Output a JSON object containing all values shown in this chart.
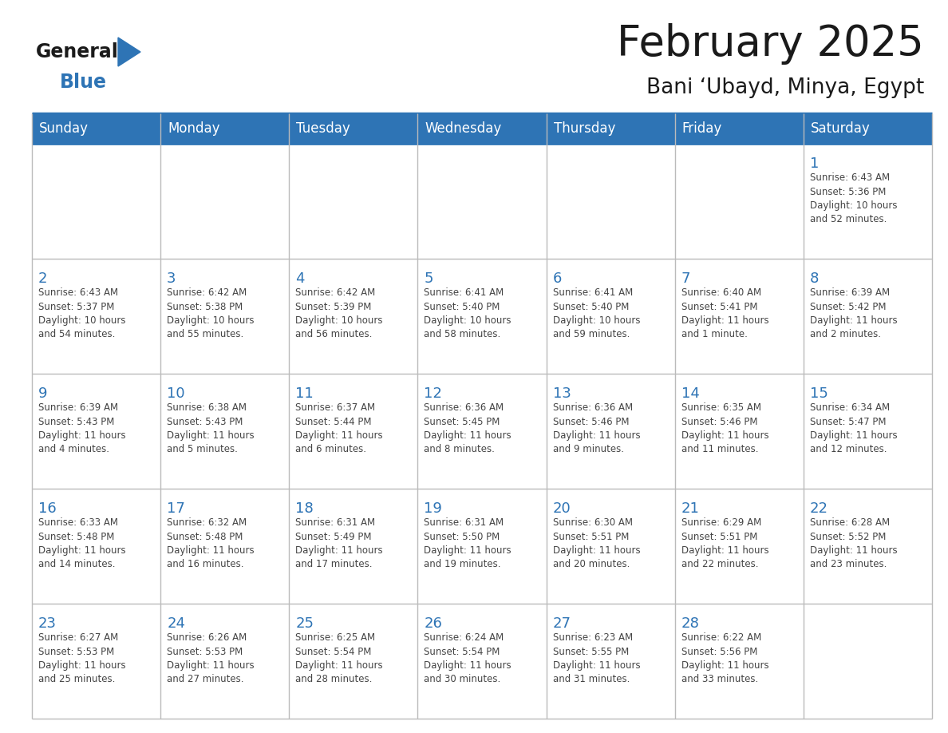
{
  "title": "February 2025",
  "subtitle": "Bani ‘Ubayd, Minya, Egypt",
  "days_of_week": [
    "Sunday",
    "Monday",
    "Tuesday",
    "Wednesday",
    "Thursday",
    "Friday",
    "Saturday"
  ],
  "header_bg": "#2E74B5",
  "header_text_color": "#FFFFFF",
  "cell_bg": "#FFFFFF",
  "border_color": "#2E74B5",
  "grid_color": "#BBBBBB",
  "day_number_color": "#2E74B5",
  "info_text_color": "#444444",
  "title_color": "#1A1A1A",
  "subtitle_color": "#1A1A1A",
  "logo_general_color": "#1A1A1A",
  "logo_blue_color": "#2E74B5",
  "calendar_data": [
    [
      null,
      null,
      null,
      null,
      null,
      null,
      1
    ],
    [
      2,
      3,
      4,
      5,
      6,
      7,
      8
    ],
    [
      9,
      10,
      11,
      12,
      13,
      14,
      15
    ],
    [
      16,
      17,
      18,
      19,
      20,
      21,
      22
    ],
    [
      23,
      24,
      25,
      26,
      27,
      28,
      null
    ]
  ],
  "sunrise_data": {
    "1": "Sunrise: 6:43 AM\nSunset: 5:36 PM\nDaylight: 10 hours\nand 52 minutes.",
    "2": "Sunrise: 6:43 AM\nSunset: 5:37 PM\nDaylight: 10 hours\nand 54 minutes.",
    "3": "Sunrise: 6:42 AM\nSunset: 5:38 PM\nDaylight: 10 hours\nand 55 minutes.",
    "4": "Sunrise: 6:42 AM\nSunset: 5:39 PM\nDaylight: 10 hours\nand 56 minutes.",
    "5": "Sunrise: 6:41 AM\nSunset: 5:40 PM\nDaylight: 10 hours\nand 58 minutes.",
    "6": "Sunrise: 6:41 AM\nSunset: 5:40 PM\nDaylight: 10 hours\nand 59 minutes.",
    "7": "Sunrise: 6:40 AM\nSunset: 5:41 PM\nDaylight: 11 hours\nand 1 minute.",
    "8": "Sunrise: 6:39 AM\nSunset: 5:42 PM\nDaylight: 11 hours\nand 2 minutes.",
    "9": "Sunrise: 6:39 AM\nSunset: 5:43 PM\nDaylight: 11 hours\nand 4 minutes.",
    "10": "Sunrise: 6:38 AM\nSunset: 5:43 PM\nDaylight: 11 hours\nand 5 minutes.",
    "11": "Sunrise: 6:37 AM\nSunset: 5:44 PM\nDaylight: 11 hours\nand 6 minutes.",
    "12": "Sunrise: 6:36 AM\nSunset: 5:45 PM\nDaylight: 11 hours\nand 8 minutes.",
    "13": "Sunrise: 6:36 AM\nSunset: 5:46 PM\nDaylight: 11 hours\nand 9 minutes.",
    "14": "Sunrise: 6:35 AM\nSunset: 5:46 PM\nDaylight: 11 hours\nand 11 minutes.",
    "15": "Sunrise: 6:34 AM\nSunset: 5:47 PM\nDaylight: 11 hours\nand 12 minutes.",
    "16": "Sunrise: 6:33 AM\nSunset: 5:48 PM\nDaylight: 11 hours\nand 14 minutes.",
    "17": "Sunrise: 6:32 AM\nSunset: 5:48 PM\nDaylight: 11 hours\nand 16 minutes.",
    "18": "Sunrise: 6:31 AM\nSunset: 5:49 PM\nDaylight: 11 hours\nand 17 minutes.",
    "19": "Sunrise: 6:31 AM\nSunset: 5:50 PM\nDaylight: 11 hours\nand 19 minutes.",
    "20": "Sunrise: 6:30 AM\nSunset: 5:51 PM\nDaylight: 11 hours\nand 20 minutes.",
    "21": "Sunrise: 6:29 AM\nSunset: 5:51 PM\nDaylight: 11 hours\nand 22 minutes.",
    "22": "Sunrise: 6:28 AM\nSunset: 5:52 PM\nDaylight: 11 hours\nand 23 minutes.",
    "23": "Sunrise: 6:27 AM\nSunset: 5:53 PM\nDaylight: 11 hours\nand 25 minutes.",
    "24": "Sunrise: 6:26 AM\nSunset: 5:53 PM\nDaylight: 11 hours\nand 27 minutes.",
    "25": "Sunrise: 6:25 AM\nSunset: 5:54 PM\nDaylight: 11 hours\nand 28 minutes.",
    "26": "Sunrise: 6:24 AM\nSunset: 5:54 PM\nDaylight: 11 hours\nand 30 minutes.",
    "27": "Sunrise: 6:23 AM\nSunset: 5:55 PM\nDaylight: 11 hours\nand 31 minutes.",
    "28": "Sunrise: 6:22 AM\nSunset: 5:56 PM\nDaylight: 11 hours\nand 33 minutes."
  },
  "figsize": [
    11.88,
    9.18
  ],
  "dpi": 100
}
